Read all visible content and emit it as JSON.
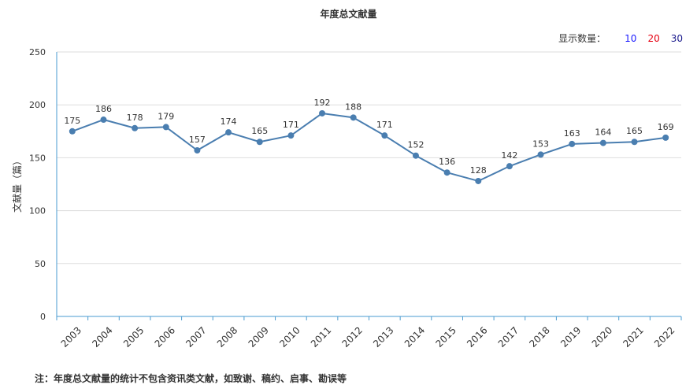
{
  "title": "年度总文献量",
  "count_selector": {
    "label": "显示数量：",
    "options": [
      {
        "label": "10",
        "color": "#1a1aff"
      },
      {
        "label": "20",
        "color": "#e60012"
      },
      {
        "label": "30",
        "color": "#1a1a8c"
      }
    ]
  },
  "footnote": "注：年度总文献量的统计不包含资讯类文献，如致谢、稿约、启事、勘误等",
  "colors": {
    "line": "#4a7eb0",
    "axis": "#4a9bd0",
    "grid": "#dddddd"
  },
  "chart_data": {
    "type": "line",
    "title": "年度总文献量",
    "xlabel": "",
    "ylabel": "文献量（篇）",
    "ylim": [
      0,
      250
    ],
    "yticks": [
      0,
      50,
      100,
      150,
      200,
      250
    ],
    "grid": true,
    "x": [
      "2003",
      "2004",
      "2005",
      "2006",
      "2007",
      "2008",
      "2009",
      "2010",
      "2011",
      "2012",
      "2013",
      "2014",
      "2015",
      "2016",
      "2017",
      "2018",
      "2019",
      "2020",
      "2021",
      "2022"
    ],
    "series": [
      {
        "values": [
          175,
          186,
          178,
          179,
          157,
          174,
          165,
          171,
          192,
          188,
          171,
          152,
          136,
          128,
          142,
          153,
          163,
          164,
          165,
          169
        ]
      }
    ]
  }
}
